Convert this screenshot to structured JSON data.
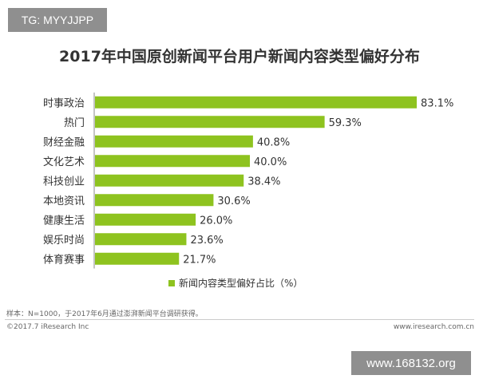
{
  "watermark_top": "TG: MYYJJPP",
  "watermark_bottom": "www.168132.org",
  "footnote": "样本：N=1000，于2017年6月通过澎湃新闻平台调研获得。",
  "footer": {
    "copyright": "©2017.7 iResearch Inc",
    "website": "www.iresearch.com.cn"
  },
  "chart_data": {
    "type": "bar",
    "orientation": "horizontal",
    "title": "2017年中国原创新闻平台用户新闻内容类型偏好分布",
    "categories": [
      "时事政治",
      "热门",
      "财经金融",
      "文化艺术",
      "科技创业",
      "本地资讯",
      "健康生活",
      "娱乐时尚",
      "体育赛事"
    ],
    "values": [
      83.1,
      59.3,
      40.8,
      40.0,
      38.4,
      30.6,
      26.0,
      23.6,
      21.7
    ],
    "value_labels": [
      "83.1%",
      "59.3%",
      "40.8%",
      "40.0%",
      "38.4%",
      "30.6%",
      "26.0%",
      "23.6%",
      "21.7%"
    ],
    "series": [
      {
        "name": "新闻内容类型偏好占比（%）",
        "values": [
          83.1,
          59.3,
          40.8,
          40.0,
          38.4,
          30.6,
          26.0,
          23.6,
          21.7
        ]
      }
    ],
    "legend": "bottom",
    "grid": false,
    "color": "#8ec31f",
    "xlim": [
      0,
      100
    ]
  }
}
